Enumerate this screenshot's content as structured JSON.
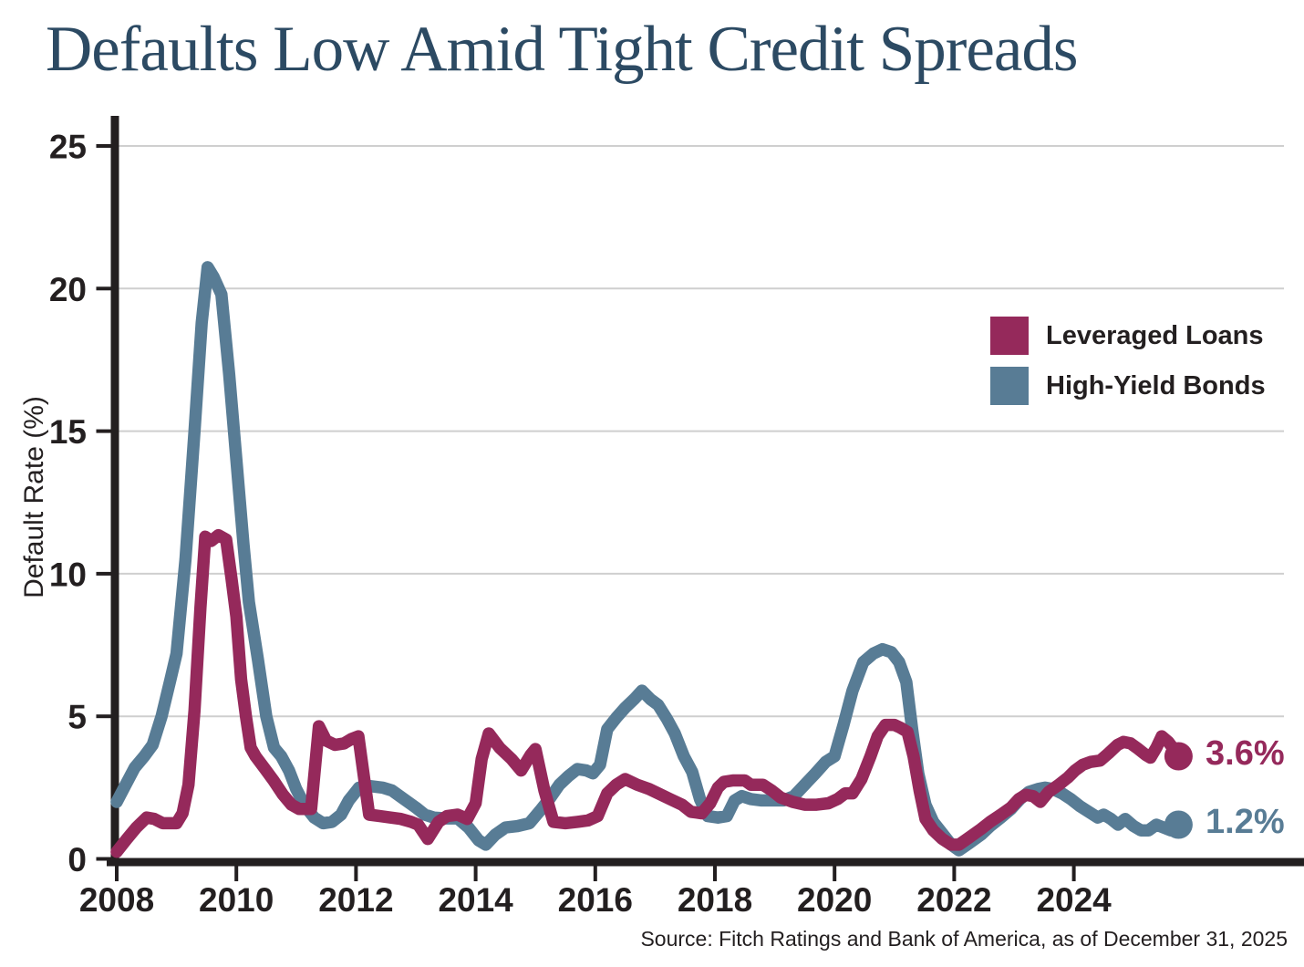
{
  "title": "Defaults Low Amid Tight Credit Spreads",
  "source": "Source: Fitch Ratings and Bank of America, as of December 31, 2025",
  "chart_data": {
    "type": "line",
    "title": "Defaults Low Amid Tight Credit Spreads",
    "ylabel": "Default Rate (%)",
    "xlabel": "",
    "ylim": [
      0,
      26
    ],
    "xlim": [
      2008,
      2026
    ],
    "y_ticks": [
      0,
      5,
      10,
      15,
      20,
      25
    ],
    "x_ticks": [
      2008,
      2010,
      2012,
      2014,
      2016,
      2018,
      2020,
      2022,
      2024
    ],
    "grid": "horizontal",
    "legend_position": "upper-right",
    "series": [
      {
        "name": "Leveraged Loans",
        "color": "#95295B",
        "end_label": "3.6%",
        "points": [
          [
            2008.0,
            0.25
          ],
          [
            2008.17,
            0.7
          ],
          [
            2008.33,
            1.1
          ],
          [
            2008.5,
            1.45
          ],
          [
            2008.63,
            1.4
          ],
          [
            2008.77,
            1.25
          ],
          [
            2009.0,
            1.25
          ],
          [
            2009.1,
            1.6
          ],
          [
            2009.2,
            2.6
          ],
          [
            2009.3,
            5.2
          ],
          [
            2009.4,
            8.8
          ],
          [
            2009.48,
            11.3
          ],
          [
            2009.58,
            11.15
          ],
          [
            2009.7,
            11.35
          ],
          [
            2009.83,
            11.2
          ],
          [
            2009.92,
            9.8
          ],
          [
            2010.0,
            8.5
          ],
          [
            2010.08,
            6.3
          ],
          [
            2010.16,
            5.0
          ],
          [
            2010.24,
            3.9
          ],
          [
            2010.32,
            3.6
          ],
          [
            2010.48,
            3.15
          ],
          [
            2010.62,
            2.75
          ],
          [
            2010.78,
            2.25
          ],
          [
            2010.92,
            1.9
          ],
          [
            2011.05,
            1.75
          ],
          [
            2011.25,
            1.75
          ],
          [
            2011.38,
            4.65
          ],
          [
            2011.5,
            4.15
          ],
          [
            2011.65,
            4.0
          ],
          [
            2011.8,
            4.05
          ],
          [
            2011.92,
            4.2
          ],
          [
            2012.04,
            4.3
          ],
          [
            2012.22,
            1.55
          ],
          [
            2012.4,
            1.5
          ],
          [
            2012.58,
            1.45
          ],
          [
            2012.75,
            1.4
          ],
          [
            2012.92,
            1.3
          ],
          [
            2013.04,
            1.2
          ],
          [
            2013.2,
            0.7
          ],
          [
            2013.38,
            1.3
          ],
          [
            2013.52,
            1.5
          ],
          [
            2013.7,
            1.55
          ],
          [
            2013.86,
            1.4
          ],
          [
            2014.0,
            1.95
          ],
          [
            2014.1,
            3.5
          ],
          [
            2014.22,
            4.4
          ],
          [
            2014.4,
            3.9
          ],
          [
            2014.6,
            3.5
          ],
          [
            2014.76,
            3.1
          ],
          [
            2014.92,
            3.65
          ],
          [
            2015.0,
            3.85
          ],
          [
            2015.15,
            2.4
          ],
          [
            2015.3,
            1.3
          ],
          [
            2015.5,
            1.25
          ],
          [
            2015.7,
            1.3
          ],
          [
            2015.88,
            1.35
          ],
          [
            2016.04,
            1.5
          ],
          [
            2016.2,
            2.3
          ],
          [
            2016.35,
            2.6
          ],
          [
            2016.5,
            2.8
          ],
          [
            2016.7,
            2.6
          ],
          [
            2016.9,
            2.45
          ],
          [
            2017.05,
            2.3
          ],
          [
            2017.25,
            2.1
          ],
          [
            2017.45,
            1.9
          ],
          [
            2017.6,
            1.65
          ],
          [
            2017.78,
            1.6
          ],
          [
            2017.92,
            1.95
          ],
          [
            2018.05,
            2.5
          ],
          [
            2018.15,
            2.7
          ],
          [
            2018.3,
            2.75
          ],
          [
            2018.5,
            2.75
          ],
          [
            2018.6,
            2.6
          ],
          [
            2018.8,
            2.6
          ],
          [
            2018.95,
            2.4
          ],
          [
            2019.1,
            2.15
          ],
          [
            2019.3,
            2.0
          ],
          [
            2019.5,
            1.9
          ],
          [
            2019.7,
            1.9
          ],
          [
            2019.9,
            1.95
          ],
          [
            2020.05,
            2.1
          ],
          [
            2020.18,
            2.3
          ],
          [
            2020.3,
            2.3
          ],
          [
            2020.45,
            2.8
          ],
          [
            2020.6,
            3.6
          ],
          [
            2020.72,
            4.3
          ],
          [
            2020.85,
            4.7
          ],
          [
            2021.0,
            4.7
          ],
          [
            2021.1,
            4.6
          ],
          [
            2021.22,
            4.45
          ],
          [
            2021.32,
            3.6
          ],
          [
            2021.42,
            2.4
          ],
          [
            2021.52,
            1.4
          ],
          [
            2021.65,
            1.0
          ],
          [
            2021.8,
            0.7
          ],
          [
            2021.95,
            0.5
          ],
          [
            2022.08,
            0.5
          ],
          [
            2022.25,
            0.75
          ],
          [
            2022.45,
            1.05
          ],
          [
            2022.6,
            1.3
          ],
          [
            2022.78,
            1.55
          ],
          [
            2022.95,
            1.8
          ],
          [
            2023.08,
            2.1
          ],
          [
            2023.2,
            2.25
          ],
          [
            2023.32,
            2.2
          ],
          [
            2023.44,
            2.0
          ],
          [
            2023.58,
            2.35
          ],
          [
            2023.75,
            2.6
          ],
          [
            2023.9,
            2.85
          ],
          [
            2024.02,
            3.1
          ],
          [
            2024.15,
            3.3
          ],
          [
            2024.28,
            3.4
          ],
          [
            2024.44,
            3.45
          ],
          [
            2024.58,
            3.7
          ],
          [
            2024.73,
            4.0
          ],
          [
            2024.83,
            4.1
          ],
          [
            2024.95,
            4.05
          ],
          [
            2025.08,
            3.85
          ],
          [
            2025.2,
            3.65
          ],
          [
            2025.28,
            3.55
          ],
          [
            2025.38,
            3.9
          ],
          [
            2025.47,
            4.3
          ],
          [
            2025.58,
            4.1
          ],
          [
            2025.67,
            3.85
          ],
          [
            2025.75,
            3.6
          ]
        ]
      },
      {
        "name": "High-Yield Bonds",
        "color": "#587C95",
        "end_label": "1.2%",
        "points": [
          [
            2008.0,
            2.0
          ],
          [
            2008.15,
            2.6
          ],
          [
            2008.3,
            3.2
          ],
          [
            2008.46,
            3.6
          ],
          [
            2008.6,
            4.0
          ],
          [
            2008.75,
            5.0
          ],
          [
            2008.9,
            6.3
          ],
          [
            2009.0,
            7.2
          ],
          [
            2009.15,
            10.5
          ],
          [
            2009.3,
            15.0
          ],
          [
            2009.42,
            18.8
          ],
          [
            2009.52,
            20.75
          ],
          [
            2009.62,
            20.4
          ],
          [
            2009.75,
            19.8
          ],
          [
            2009.88,
            17.0
          ],
          [
            2010.0,
            14.0
          ],
          [
            2010.12,
            11.0
          ],
          [
            2010.21,
            9.0
          ],
          [
            2010.36,
            7.0
          ],
          [
            2010.5,
            5.0
          ],
          [
            2010.63,
            3.9
          ],
          [
            2010.75,
            3.6
          ],
          [
            2010.88,
            3.1
          ],
          [
            2011.0,
            2.45
          ],
          [
            2011.15,
            1.85
          ],
          [
            2011.3,
            1.45
          ],
          [
            2011.45,
            1.25
          ],
          [
            2011.6,
            1.3
          ],
          [
            2011.75,
            1.55
          ],
          [
            2011.88,
            2.05
          ],
          [
            2012.05,
            2.5
          ],
          [
            2012.25,
            2.55
          ],
          [
            2012.45,
            2.5
          ],
          [
            2012.6,
            2.4
          ],
          [
            2012.8,
            2.1
          ],
          [
            2013.0,
            1.8
          ],
          [
            2013.15,
            1.55
          ],
          [
            2013.3,
            1.45
          ],
          [
            2013.5,
            1.42
          ],
          [
            2013.7,
            1.42
          ],
          [
            2013.88,
            1.1
          ],
          [
            2014.05,
            0.65
          ],
          [
            2014.17,
            0.5
          ],
          [
            2014.33,
            0.85
          ],
          [
            2014.5,
            1.1
          ],
          [
            2014.7,
            1.15
          ],
          [
            2014.9,
            1.25
          ],
          [
            2015.08,
            1.7
          ],
          [
            2015.25,
            2.15
          ],
          [
            2015.4,
            2.6
          ],
          [
            2015.55,
            2.9
          ],
          [
            2015.7,
            3.15
          ],
          [
            2015.85,
            3.1
          ],
          [
            2015.96,
            3.0
          ],
          [
            2016.08,
            3.3
          ],
          [
            2016.2,
            4.55
          ],
          [
            2016.35,
            4.95
          ],
          [
            2016.5,
            5.3
          ],
          [
            2016.65,
            5.6
          ],
          [
            2016.78,
            5.9
          ],
          [
            2016.92,
            5.6
          ],
          [
            2017.05,
            5.4
          ],
          [
            2017.2,
            4.9
          ],
          [
            2017.33,
            4.4
          ],
          [
            2017.48,
            3.6
          ],
          [
            2017.62,
            3.05
          ],
          [
            2017.75,
            2.1
          ],
          [
            2017.88,
            1.5
          ],
          [
            2018.05,
            1.45
          ],
          [
            2018.2,
            1.5
          ],
          [
            2018.33,
            2.05
          ],
          [
            2018.45,
            2.2
          ],
          [
            2018.6,
            2.1
          ],
          [
            2018.78,
            2.05
          ],
          [
            2018.95,
            2.05
          ],
          [
            2019.15,
            2.05
          ],
          [
            2019.32,
            2.2
          ],
          [
            2019.5,
            2.6
          ],
          [
            2019.68,
            3.0
          ],
          [
            2019.85,
            3.4
          ],
          [
            2020.0,
            3.6
          ],
          [
            2020.15,
            4.7
          ],
          [
            2020.3,
            5.9
          ],
          [
            2020.48,
            6.9
          ],
          [
            2020.65,
            7.2
          ],
          [
            2020.8,
            7.35
          ],
          [
            2020.95,
            7.25
          ],
          [
            2021.08,
            6.9
          ],
          [
            2021.2,
            6.2
          ],
          [
            2021.3,
            4.5
          ],
          [
            2021.4,
            3.0
          ],
          [
            2021.52,
            1.9
          ],
          [
            2021.65,
            1.3
          ],
          [
            2021.8,
            0.9
          ],
          [
            2021.95,
            0.5
          ],
          [
            2022.08,
            0.3
          ],
          [
            2022.25,
            0.55
          ],
          [
            2022.45,
            0.85
          ],
          [
            2022.6,
            1.15
          ],
          [
            2022.78,
            1.45
          ],
          [
            2022.95,
            1.75
          ],
          [
            2023.1,
            2.1
          ],
          [
            2023.25,
            2.35
          ],
          [
            2023.4,
            2.45
          ],
          [
            2023.52,
            2.5
          ],
          [
            2023.65,
            2.45
          ],
          [
            2023.8,
            2.3
          ],
          [
            2023.95,
            2.1
          ],
          [
            2024.1,
            1.85
          ],
          [
            2024.25,
            1.65
          ],
          [
            2024.4,
            1.45
          ],
          [
            2024.5,
            1.55
          ],
          [
            2024.62,
            1.4
          ],
          [
            2024.74,
            1.2
          ],
          [
            2024.86,
            1.4
          ],
          [
            2025.0,
            1.15
          ],
          [
            2025.12,
            1.0
          ],
          [
            2025.25,
            1.0
          ],
          [
            2025.38,
            1.2
          ],
          [
            2025.5,
            1.1
          ],
          [
            2025.62,
            1.0
          ],
          [
            2025.75,
            1.2
          ]
        ]
      }
    ]
  }
}
